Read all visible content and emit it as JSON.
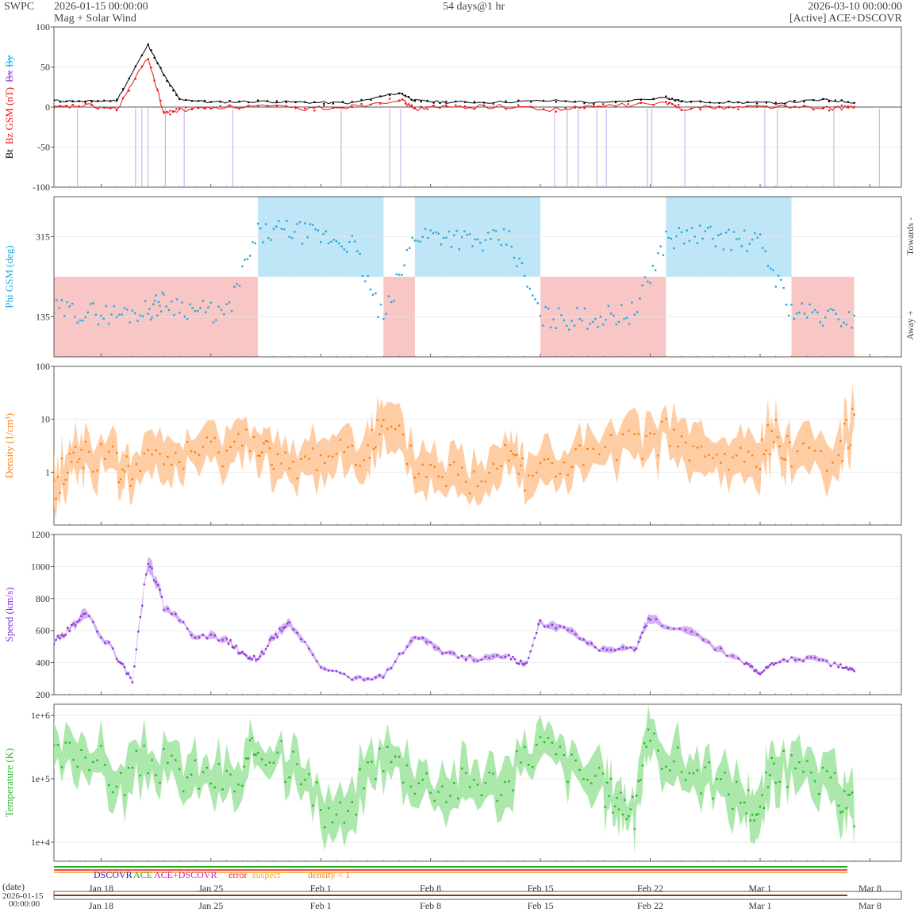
{
  "header": {
    "brand": "SWPC",
    "start": "2026-01-15 00:00:00",
    "subtitle": "Mag + Solar Wind",
    "span": "54 days@1 hr",
    "end": "2026-03-10 00:00:00",
    "source": "[Active] ACE+DSCOVR"
  },
  "colors": {
    "bt": "#000000",
    "bz": "#ee1111",
    "bx": "#9955dd",
    "by": "#22bbee",
    "phi": "#22aadd",
    "toward": "#bfe6f7",
    "away": "#f9c6c6",
    "density": "#ff7f0e",
    "density_band": "#ffc89a",
    "speed": "#8a35d6",
    "speed_band": "#cfa8f2",
    "temperature": "#22bb22",
    "temperature_band": "#a3e6a3"
  },
  "x_axis": {
    "ticks": [
      "Jan 18",
      "Jan 25",
      "Feb 1",
      "Feb 8",
      "Feb 15",
      "Feb 22",
      "Mar 1",
      "Mar 8"
    ],
    "date_label": "(date)",
    "date_start_1": "2026-01-15",
    "date_start_2": "00:00:00"
  },
  "legend": {
    "dscovr": "DSCOVR",
    "ace": "ACE",
    "combined": "ACE+DSCOVR",
    "error": "error",
    "suspect": "suspect",
    "density_flag": "density < 1"
  },
  "chart_data": [
    {
      "type": "line",
      "panel": "magnetic",
      "ylabel_parts": [
        "Bt",
        "Bz GSM (nT)",
        "Bx",
        "By"
      ],
      "ylim": [
        -100,
        100
      ],
      "yticks": [
        "100",
        "50",
        "0",
        "-50",
        "-100"
      ],
      "x": [
        "2026-01-15",
        "2026-01-17",
        "2026-01-19",
        "2026-01-21",
        "2026-01-22",
        "2026-01-23",
        "2026-01-25",
        "2026-01-28",
        "2026-01-31",
        "2026-02-03",
        "2026-02-06",
        "2026-02-07",
        "2026-02-09",
        "2026-02-12",
        "2026-02-16",
        "2026-02-19",
        "2026-02-23",
        "2026-02-24",
        "2026-02-27",
        "2026-03-02",
        "2026-03-05",
        "2026-03-07"
      ],
      "series": [
        {
          "name": "Bt",
          "values": [
            8,
            7,
            8,
            78,
            40,
            10,
            6,
            7,
            6,
            5,
            18,
            8,
            6,
            6,
            8,
            5,
            12,
            7,
            6,
            5,
            9,
            6
          ]
        },
        {
          "name": "Bz",
          "values": [
            -1,
            2,
            -3,
            62,
            -8,
            -4,
            0,
            1,
            -2,
            1,
            10,
            -2,
            0,
            1,
            -3,
            1,
            5,
            -1,
            0,
            1,
            -2,
            0
          ]
        }
      ]
    },
    {
      "type": "scatter",
      "panel": "phi",
      "ylabel": "Phi GSM (deg)",
      "right_labels": [
        "Towards -",
        "Away +"
      ],
      "yticks": [
        "315",
        "135"
      ],
      "ylim": [
        45,
        405
      ],
      "x": [
        "2026-01-15",
        "2026-01-17",
        "2026-01-19",
        "2026-01-21",
        "2026-01-22",
        "2026-01-24",
        "2026-01-26",
        "2026-01-28",
        "2026-01-30",
        "2026-02-01",
        "2026-02-03",
        "2026-02-05",
        "2026-02-07",
        "2026-02-09",
        "2026-02-11",
        "2026-02-13",
        "2026-02-15",
        "2026-02-17",
        "2026-02-19",
        "2026-02-21",
        "2026-02-23",
        "2026-02-25",
        "2026-02-27",
        "2026-03-01",
        "2026-03-03",
        "2026-03-05",
        "2026-03-07"
      ],
      "values": [
        150,
        145,
        140,
        150,
        170,
        150,
        140,
        320,
        330,
        315,
        300,
        125,
        320,
        320,
        300,
        310,
        135,
        130,
        135,
        145,
        310,
        320,
        310,
        300,
        150,
        135,
        130
      ]
    },
    {
      "type": "line",
      "panel": "density",
      "ylabel": "Density (1/cm³)",
      "scale": "log",
      "ylim": [
        0.1,
        100
      ],
      "yticks": [
        "100",
        "10",
        "1"
      ],
      "x": [
        "2026-01-15",
        "2026-01-16",
        "2026-01-17",
        "2026-01-19",
        "2026-01-20",
        "2026-01-22",
        "2026-01-24",
        "2026-01-26",
        "2026-01-28",
        "2026-01-29",
        "2026-01-31",
        "2026-02-02",
        "2026-02-04",
        "2026-02-05",
        "2026-02-07",
        "2026-02-09",
        "2026-02-11",
        "2026-02-13",
        "2026-02-14",
        "2026-02-16",
        "2026-02-18",
        "2026-02-21",
        "2026-02-23",
        "2026-02-25",
        "2026-02-27",
        "2026-03-01",
        "2026-03-02",
        "2026-03-03",
        "2026-03-06",
        "2026-03-07"
      ],
      "values": [
        0.4,
        1.5,
        2.5,
        1.2,
        1.0,
        1.8,
        2.0,
        3.0,
        4.5,
        1.0,
        1.5,
        2.5,
        3.0,
        6.0,
        1.2,
        1.0,
        0.6,
        3.0,
        1.0,
        1.2,
        1.8,
        3.0,
        5.0,
        1.8,
        1.5,
        2.0,
        5.0,
        2.5,
        2.0,
        8.0
      ]
    },
    {
      "type": "line",
      "panel": "speed",
      "ylabel": "Speed (km/s)",
      "ylim": [
        200,
        1200
      ],
      "yticks": [
        "1200",
        "1000",
        "800",
        "600",
        "400",
        "200"
      ],
      "x": [
        "2026-01-15",
        "2026-01-16",
        "2026-01-17",
        "2026-01-19",
        "2026-01-20",
        "2026-01-21",
        "2026-01-22",
        "2026-01-24",
        "2026-01-26",
        "2026-01-27",
        "2026-01-28",
        "2026-01-29",
        "2026-01-30",
        "2026-02-01",
        "2026-02-03",
        "2026-02-05",
        "2026-02-07",
        "2026-02-09",
        "2026-02-11",
        "2026-02-13",
        "2026-02-14",
        "2026-02-15",
        "2026-02-17",
        "2026-02-19",
        "2026-02-21",
        "2026-02-22",
        "2026-02-25",
        "2026-02-28",
        "2026-03-01",
        "2026-03-02",
        "2026-03-04",
        "2026-03-06",
        "2026-03-07"
      ],
      "values": [
        520,
        620,
        710,
        440,
        285,
        1050,
        760,
        560,
        550,
        450,
        420,
        560,
        650,
        380,
        300,
        310,
        580,
        450,
        420,
        440,
        380,
        650,
        580,
        470,
        480,
        680,
        560,
        400,
        330,
        410,
        430,
        380,
        350
      ]
    },
    {
      "type": "line",
      "panel": "temperature",
      "ylabel": "Temperature (K)",
      "scale": "log",
      "ylim": [
        5000,
        1500000
      ],
      "yticks": [
        "1e+6",
        "1e+5",
        "1e+4"
      ],
      "x": [
        "2026-01-15",
        "2026-01-17",
        "2026-01-19",
        "2026-01-21",
        "2026-01-23",
        "2026-01-25",
        "2026-01-27",
        "2026-01-28",
        "2026-01-30",
        "2026-02-01",
        "2026-02-03",
        "2026-02-05",
        "2026-02-07",
        "2026-02-09",
        "2026-02-11",
        "2026-02-13",
        "2026-02-15",
        "2026-02-17",
        "2026-02-19",
        "2026-02-20",
        "2026-02-21",
        "2026-02-22",
        "2026-02-24",
        "2026-02-26",
        "2026-02-28",
        "2026-03-01",
        "2026-03-02",
        "2026-03-04",
        "2026-03-06",
        "2026-03-07"
      ],
      "values": [
        200000,
        300000,
        70000,
        200000,
        120000,
        110000,
        80000,
        350000,
        150000,
        30000,
        25000,
        250000,
        110000,
        70000,
        100000,
        80000,
        350000,
        150000,
        70000,
        50000,
        25000,
        350000,
        160000,
        90000,
        50000,
        25000,
        150000,
        110000,
        60000,
        35000
      ]
    }
  ]
}
